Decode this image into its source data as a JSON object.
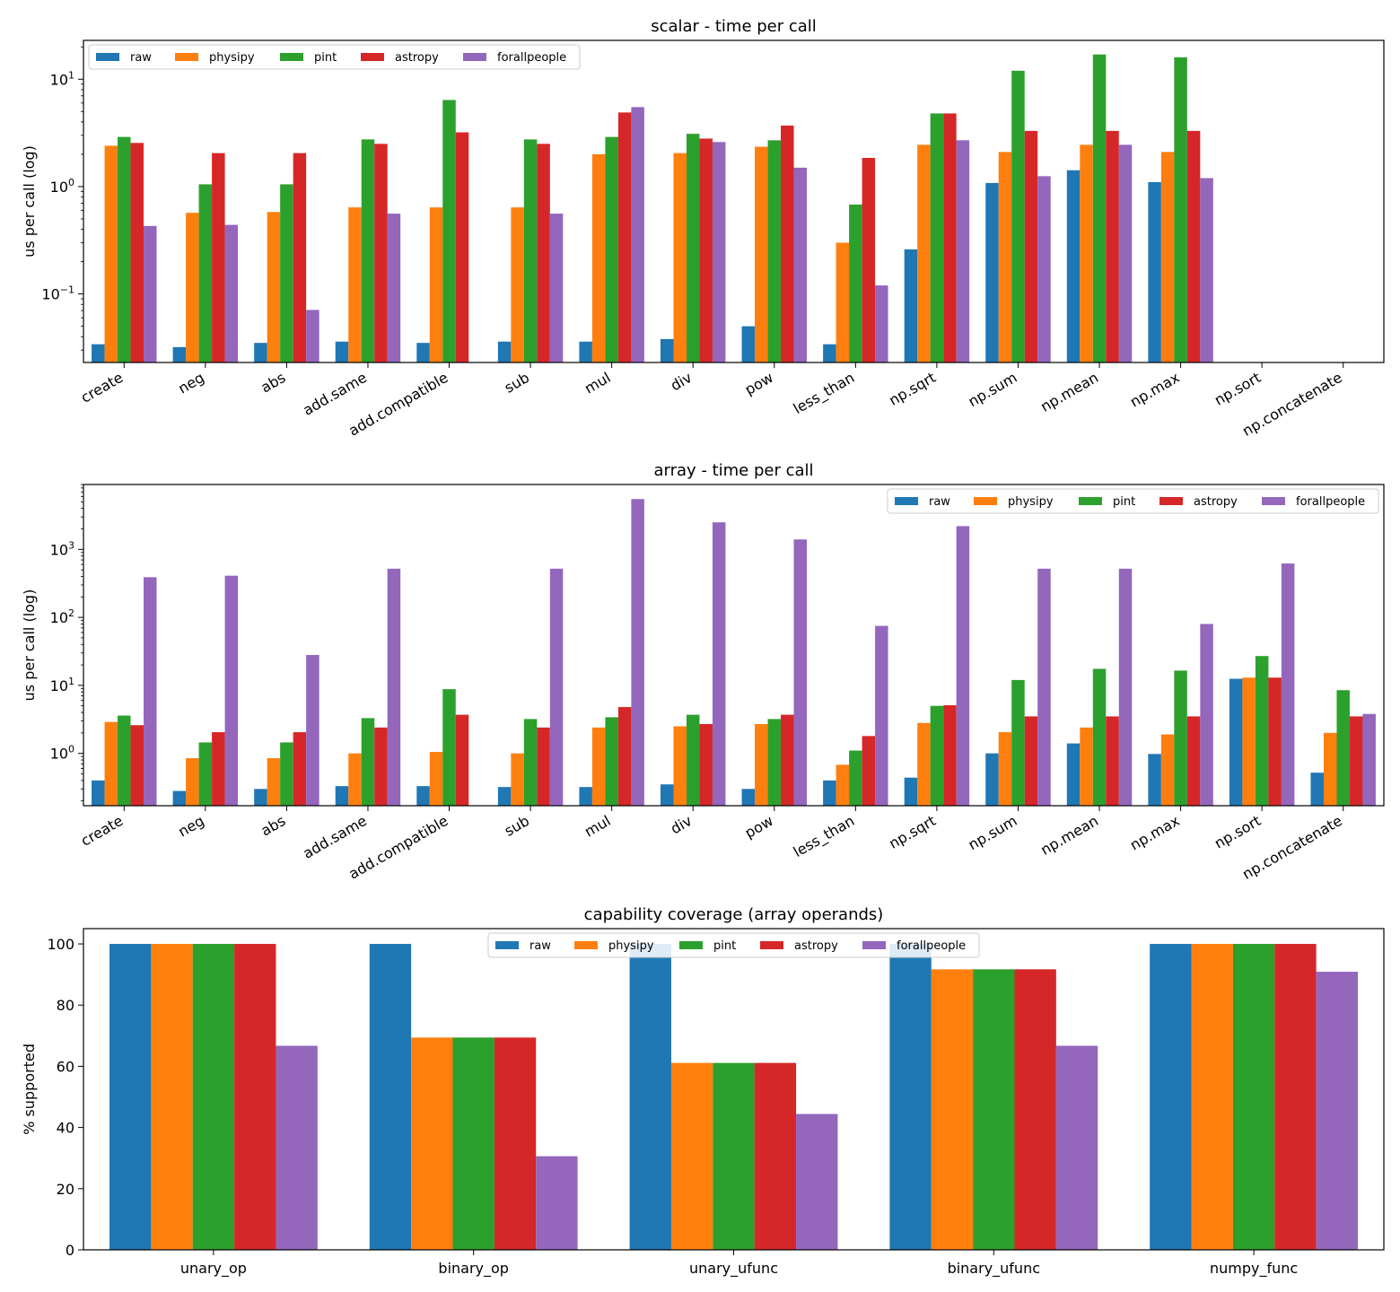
{
  "series_colors": {
    "raw": "#1f77b4",
    "physipy": "#ff7f0e",
    "pint": "#2ca02c",
    "astropy": "#d62728",
    "forallpeople": "#9467bd"
  },
  "chart_data": [
    {
      "type": "bar",
      "title": "scalar - time per call",
      "ylabel": "us per call (log)",
      "yscale": "log",
      "ylim": [
        0.023,
        23
      ],
      "yticks": [
        {
          "value": 0.1,
          "base": "10",
          "exp": "−1"
        },
        {
          "value": 1,
          "base": "10",
          "exp": "0"
        },
        {
          "value": 10,
          "base": "10",
          "exp": "1"
        }
      ],
      "legend": "upper-left",
      "grid": false,
      "categories": [
        "create",
        "neg",
        "abs",
        "add.same",
        "add.compatible",
        "sub",
        "mul",
        "div",
        "pow",
        "less_than",
        "np.sqrt",
        "np.sum",
        "np.mean",
        "np.max",
        "np.sort",
        "np.concatenate"
      ],
      "series": [
        {
          "name": "raw",
          "values": [
            0.034,
            0.032,
            0.035,
            0.036,
            0.035,
            0.036,
            0.036,
            0.038,
            0.05,
            0.034,
            0.26,
            1.08,
            1.42,
            1.1,
            null,
            null
          ]
        },
        {
          "name": "physipy",
          "values": [
            2.4,
            0.57,
            0.58,
            0.64,
            0.64,
            0.64,
            2.0,
            2.05,
            2.35,
            0.3,
            2.45,
            2.1,
            2.45,
            2.1,
            null,
            null
          ]
        },
        {
          "name": "pint",
          "values": [
            2.9,
            1.05,
            1.05,
            2.75,
            6.4,
            2.75,
            2.9,
            3.1,
            2.7,
            0.68,
            4.8,
            12.0,
            17.0,
            16.0,
            null,
            null
          ]
        },
        {
          "name": "astropy",
          "values": [
            2.55,
            2.05,
            2.05,
            2.5,
            3.2,
            2.5,
            4.9,
            2.8,
            3.7,
            1.85,
            4.8,
            3.3,
            3.3,
            3.3,
            null,
            null
          ]
        },
        {
          "name": "forallpeople",
          "values": [
            0.43,
            0.44,
            0.071,
            0.56,
            null,
            0.56,
            5.5,
            2.6,
            1.5,
            0.12,
            2.7,
            1.25,
            2.45,
            1.2,
            null,
            null
          ]
        }
      ]
    },
    {
      "type": "bar",
      "title": "array - time per call",
      "ylabel": "us per call (log)",
      "yscale": "log",
      "ylim": [
        0.17,
        9000
      ],
      "yticks": [
        {
          "value": 1,
          "base": "10",
          "exp": "0"
        },
        {
          "value": 10,
          "base": "10",
          "exp": "1"
        },
        {
          "value": 100,
          "base": "10",
          "exp": "2"
        },
        {
          "value": 1000,
          "base": "10",
          "exp": "3"
        }
      ],
      "legend": "upper-right",
      "grid": false,
      "categories": [
        "create",
        "neg",
        "abs",
        "add.same",
        "add.compatible",
        "sub",
        "mul",
        "div",
        "pow",
        "less_than",
        "np.sqrt",
        "np.sum",
        "np.mean",
        "np.max",
        "np.sort",
        "np.concatenate"
      ],
      "series": [
        {
          "name": "raw",
          "values": [
            0.4,
            0.28,
            0.3,
            0.33,
            0.33,
            0.32,
            0.32,
            0.35,
            0.3,
            0.4,
            0.44,
            1.0,
            1.4,
            0.98,
            12.5,
            0.52
          ]
        },
        {
          "name": "physipy",
          "values": [
            2.9,
            0.85,
            0.85,
            1.0,
            1.05,
            1.0,
            2.4,
            2.5,
            2.7,
            0.68,
            2.8,
            2.05,
            2.4,
            1.9,
            13.0,
            2.0
          ]
        },
        {
          "name": "pint",
          "values": [
            3.6,
            1.45,
            1.45,
            3.3,
            8.8,
            3.2,
            3.4,
            3.7,
            3.2,
            1.1,
            5.0,
            12.0,
            17.5,
            16.5,
            27.0,
            8.5
          ]
        },
        {
          "name": "astropy",
          "values": [
            2.6,
            2.05,
            2.05,
            2.4,
            3.7,
            2.4,
            4.8,
            2.7,
            3.7,
            1.8,
            5.1,
            3.5,
            3.5,
            3.5,
            13.0,
            3.5
          ]
        },
        {
          "name": "forallpeople",
          "values": [
            390,
            410,
            28,
            520,
            null,
            520,
            5500,
            2500,
            1400,
            75,
            2200,
            520,
            520,
            80,
            620,
            3.8
          ]
        }
      ]
    },
    {
      "type": "bar",
      "title": "capability coverage (array operands)",
      "ylabel": "% supported",
      "yscale": "linear",
      "ylim": [
        0,
        105
      ],
      "yticks": [
        {
          "value": 0,
          "label": "0"
        },
        {
          "value": 20,
          "label": "20"
        },
        {
          "value": 40,
          "label": "40"
        },
        {
          "value": 60,
          "label": "60"
        },
        {
          "value": 80,
          "label": "80"
        },
        {
          "value": 100,
          "label": "100"
        }
      ],
      "legend": "upper-center",
      "grid": false,
      "categories": [
        "unary_op",
        "binary_op",
        "unary_ufunc",
        "binary_ufunc",
        "numpy_func"
      ],
      "series": [
        {
          "name": "raw",
          "values": [
            100,
            100,
            100,
            100,
            100
          ]
        },
        {
          "name": "physipy",
          "values": [
            100,
            69.4,
            61.1,
            91.7,
            100
          ]
        },
        {
          "name": "pint",
          "values": [
            100,
            69.4,
            61.1,
            91.7,
            100
          ]
        },
        {
          "name": "astropy",
          "values": [
            100,
            69.4,
            61.1,
            91.7,
            100
          ]
        },
        {
          "name": "forallpeople",
          "values": [
            66.7,
            30.6,
            44.4,
            66.7,
            90.9
          ]
        }
      ]
    }
  ]
}
